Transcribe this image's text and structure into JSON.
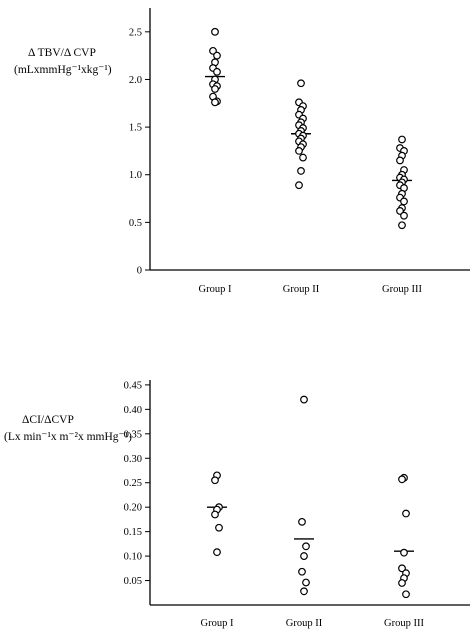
{
  "chart_data": [
    {
      "type": "scatter",
      "title": "",
      "ylabel_line1": "Δ TBV/Δ CVP",
      "ylabel_line2": "(mLxmmHg⁻¹xkg⁻¹)",
      "categories": [
        "Group I",
        "Group II",
        "Group III"
      ],
      "ylim": [
        0,
        2.75
      ],
      "yticks": [
        "0",
        "0.5",
        "1.0",
        "1.5",
        "2.0",
        "2.5"
      ],
      "ytick_values": [
        0,
        0.5,
        1.0,
        1.5,
        2.0,
        2.5
      ],
      "grid": false,
      "series": [
        {
          "category": "Group I",
          "mean": 2.03,
          "points": [
            2.5,
            2.3,
            2.25,
            2.18,
            2.12,
            2.08,
            2.0,
            1.95,
            1.93,
            1.9,
            1.82,
            1.77,
            1.76
          ]
        },
        {
          "category": "Group II",
          "mean": 1.43,
          "points": [
            1.96,
            1.76,
            1.72,
            1.68,
            1.63,
            1.59,
            1.55,
            1.52,
            1.49,
            1.46,
            1.43,
            1.41,
            1.38,
            1.35,
            1.32,
            1.29,
            1.25,
            1.18,
            1.04,
            0.89
          ]
        },
        {
          "category": "Group III",
          "mean": 0.94,
          "points": [
            1.37,
            1.28,
            1.25,
            1.2,
            1.15,
            1.05,
            1.0,
            0.97,
            0.95,
            0.92,
            0.89,
            0.86,
            0.8,
            0.76,
            0.72,
            0.65,
            0.62,
            0.57,
            0.47
          ]
        }
      ]
    },
    {
      "type": "scatter",
      "title": "",
      "ylabel_line1": "ΔCI/ΔCVP",
      "ylabel_line2": "(Lx min⁻¹x m⁻²x mmHg⁻¹)",
      "categories": [
        "Group I",
        "Group II",
        "Group III"
      ],
      "ylim": [
        0,
        0.46
      ],
      "yticks": [
        "0.05",
        "0.10",
        "0.15",
        "0.20",
        "0.25",
        "0.30",
        "0.35",
        "0.40",
        "0.45"
      ],
      "ytick_values": [
        0.05,
        0.1,
        0.15,
        0.2,
        0.25,
        0.3,
        0.35,
        0.4,
        0.45
      ],
      "grid": false,
      "series": [
        {
          "category": "Group I",
          "mean": 0.2,
          "points": [
            0.265,
            0.255,
            0.2,
            0.195,
            0.185,
            0.158,
            0.108
          ]
        },
        {
          "category": "Group II",
          "mean": 0.135,
          "points": [
            0.42,
            0.17,
            0.12,
            0.1,
            0.068,
            0.046,
            0.028
          ]
        },
        {
          "category": "Group III",
          "mean": 0.11,
          "points": [
            0.26,
            0.257,
            0.187,
            0.107,
            0.075,
            0.065,
            0.055,
            0.045,
            0.022
          ]
        }
      ]
    }
  ]
}
